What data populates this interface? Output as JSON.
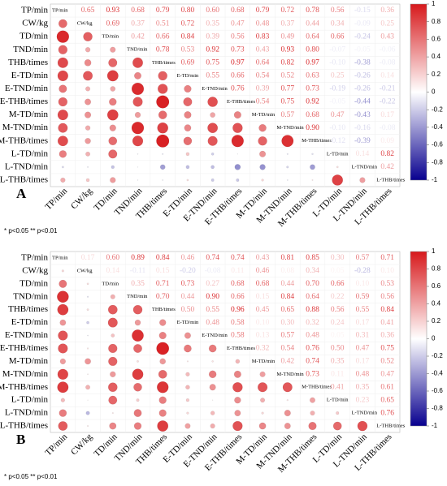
{
  "chart_data": [
    {
      "type": "corrplot",
      "panel_label": "A",
      "note": "* p<0.05  ** p<0.01",
      "variables": [
        "TP/min",
        "CW/kg",
        "TD/min",
        "TND/min",
        "THB/times",
        "E-TD/min",
        "E-TND/min",
        "E-THB/times",
        "M-TD/min",
        "M-TND/min",
        "M-THB/times",
        "L-TD/min",
        "L-TND/min",
        "L-THB/times"
      ],
      "upper": [
        [
          0.65,
          0.93,
          0.68,
          0.79,
          0.8,
          0.6,
          0.68,
          0.79,
          0.72,
          0.78,
          0.56,
          -0.15,
          0.36
        ],
        [
          0.69,
          0.37,
          0.51,
          0.72,
          0.35,
          0.47,
          0.48,
          0.37,
          0.44,
          0.34,
          -0.09,
          0.25
        ],
        [
          0.42,
          0.66,
          0.84,
          0.39,
          0.56,
          0.83,
          0.49,
          0.64,
          0.66,
          -0.24,
          0.43
        ],
        [
          0.78,
          0.53,
          0.92,
          0.73,
          0.43,
          0.93,
          0.8,
          -0.07,
          -0.05,
          -0.06
        ],
        [
          0.69,
          0.75,
          0.97,
          0.64,
          0.82,
          0.97,
          -0.1,
          -0.38,
          -0.08
        ],
        [
          0.55,
          0.66,
          0.54,
          0.52,
          0.63,
          0.25,
          -0.26,
          0.14
        ],
        [
          0.76,
          0.39,
          0.77,
          0.73,
          -0.19,
          -0.26,
          -0.21
        ],
        [
          0.54,
          0.75,
          0.92,
          -0.05,
          -0.44,
          -0.22
        ],
        [
          0.57,
          0.68,
          0.47,
          -0.43,
          0.17
        ],
        [
          0.9,
          -0.1,
          -0.16,
          -0.08
        ],
        [
          -0.12,
          -0.39,
          0.09
        ],
        [
          0.14,
          0.82
        ],
        [
          0.42
        ]
      ],
      "upper_labels": [
        [
          "0.65",
          "0.93",
          "0.68",
          "0.79",
          "0.80",
          "0.60",
          "0.68",
          "0.79",
          "0.72",
          "0.78",
          "0.56",
          "-0.15",
          "0.36"
        ],
        [
          "0.69",
          "0.37",
          "0.51",
          "0.72",
          "0.35",
          "0.47",
          "0.48",
          "0.37",
          "0.44",
          "0.34",
          "-0.09",
          "0.25"
        ],
        [
          "0.42",
          "0.66",
          "0.84",
          "0.39",
          "0.56",
          "0.83",
          "0.49",
          "0.64",
          "0.66",
          "-0.24",
          "0.43"
        ],
        [
          "0.78",
          "0.53",
          "0.92",
          "0.73",
          "0.43",
          "0.93",
          "0.80",
          "-0.07",
          "-0.05",
          "-0.06"
        ],
        [
          "0.69",
          "0.75",
          "0.97",
          "0.64",
          "0.82",
          "0.97",
          "-0.10",
          "-0.38",
          "-0.08"
        ],
        [
          "0.55",
          "0.66",
          "0.54",
          "0.52",
          "0.63",
          "0.25",
          "-0.26",
          "0.14"
        ],
        [
          "0.76",
          "0.39",
          "0.77",
          "0.73",
          "-0.19",
          "-0.26",
          "-0.21"
        ],
        [
          "0.54",
          "0.75",
          "0.92",
          "-0.05",
          "-0.44",
          "-0.22"
        ],
        [
          "0.57",
          "0.68",
          "0.47",
          "-0.43",
          "0.17"
        ],
        [
          "0.90",
          "-0.10",
          "-0.16",
          "-0.08"
        ],
        [
          "-0.12",
          "-0.39",
          "0.09"
        ],
        [
          "0.14",
          "0.82"
        ],
        [
          "0.42"
        ]
      ],
      "clim": [
        -1,
        1
      ],
      "cticks": [
        1,
        0.8,
        0.6,
        0.4,
        0.2,
        0,
        -0.2,
        -0.4,
        -0.6,
        -0.8,
        -1
      ],
      "colors": {
        "positive": "#d7191c",
        "zero": "#ffffff",
        "negative": "#08008f"
      }
    },
    {
      "type": "corrplot",
      "panel_label": "B",
      "note": "* p<0.05  ** p<0.01",
      "variables": [
        "TP/min",
        "CW/kg",
        "TD/min",
        "TND/min",
        "THB/times",
        "E-TD/min",
        "E-TND/min",
        "E-THB/times",
        "M-TD/min",
        "M-TND/min",
        "M-THB/times",
        "L-TD/min",
        "L-TND/min",
        "L-THB/times"
      ],
      "upper": [
        [
          0.17,
          0.6,
          0.89,
          0.84,
          0.46,
          0.74,
          0.74,
          0.43,
          0.81,
          0.85,
          0.3,
          0.57,
          0.71
        ],
        [
          0.14,
          -0.11,
          0.15,
          -0.2,
          -0.08,
          0.11,
          0.46,
          0.08,
          0.34,
          0.05,
          -0.28,
          0.1
        ],
        [
          0.35,
          0.71,
          0.73,
          0.27,
          0.68,
          0.68,
          0.44,
          0.7,
          0.66,
          0.1,
          0.53
        ],
        [
          0.7,
          0.44,
          0.9,
          0.66,
          0.15,
          0.84,
          0.64,
          0.22,
          0.59,
          0.56
        ],
        [
          0.5,
          0.55,
          0.96,
          0.45,
          0.65,
          0.88,
          0.56,
          0.55,
          0.84
        ],
        [
          0.48,
          0.58,
          0.1,
          0.3,
          0.32,
          0.24,
          0.17,
          0.41
        ],
        [
          0.58,
          0.13,
          0.57,
          0.48,
          0.05,
          0.31,
          0.36
        ],
        [
          0.32,
          0.54,
          0.76,
          0.5,
          0.47,
          0.75
        ],
        [
          0.42,
          0.74,
          0.35,
          0.17,
          0.52
        ],
        [
          0.73,
          0.11,
          0.48,
          0.47
        ],
        [
          0.41,
          0.35,
          0.61
        ],
        [
          0.23,
          0.65
        ],
        [
          0.76
        ]
      ],
      "upper_labels": [
        [
          "0.17",
          "0.60",
          "0.89",
          "0.84",
          "0.46",
          "0.74",
          "0.74",
          "0.43",
          "0.81",
          "0.85",
          "0.30",
          "0.57",
          "0.71"
        ],
        [
          "0.14",
          "-0.11",
          "0.15",
          "-0.20",
          "-0.08",
          "0.11",
          "0.46",
          "0.08",
          "0.34",
          "0.05",
          "-0.28",
          "0.10"
        ],
        [
          "0.35",
          "0.71",
          "0.73",
          "0.27",
          "0.68",
          "0.68",
          "0.44",
          "0.70",
          "0.66",
          "0.10",
          "0.53"
        ],
        [
          "0.70",
          "0.44",
          "0.90",
          "0.66",
          "0.15",
          "0.84",
          "0.64",
          "0.22",
          "0.59",
          "0.56"
        ],
        [
          "0.50",
          "0.55",
          "0.96",
          "0.45",
          "0.65",
          "0.88",
          "0.56",
          "0.55",
          "0.84"
        ],
        [
          "0.48",
          "0.58",
          "0.10",
          "0.30",
          "0.32",
          "0.24",
          "0.17",
          "0.41"
        ],
        [
          "0.58",
          "0.13",
          "0.57",
          "0.48",
          "0.05",
          "0.31",
          "0.36"
        ],
        [
          "0.32",
          "0.54",
          "0.76",
          "0.50",
          "0.47",
          "0.75"
        ],
        [
          "0.42",
          "0.74",
          "0.35",
          "0.17",
          "0.52"
        ],
        [
          "0.73",
          "0.11",
          "0.48",
          "0.47"
        ],
        [
          "0.41",
          "0.35",
          "0.61"
        ],
        [
          "0.23",
          "0.65"
        ],
        [
          "0.76"
        ]
      ],
      "clim": [
        -1,
        1
      ],
      "cticks": [
        1,
        0.8,
        0.6,
        0.4,
        0.2,
        0,
        -0.2,
        -0.4,
        -0.6,
        -0.8,
        -1
      ],
      "colors": {
        "positive": "#d7191c",
        "zero": "#ffffff",
        "negative": "#08008f"
      }
    }
  ]
}
